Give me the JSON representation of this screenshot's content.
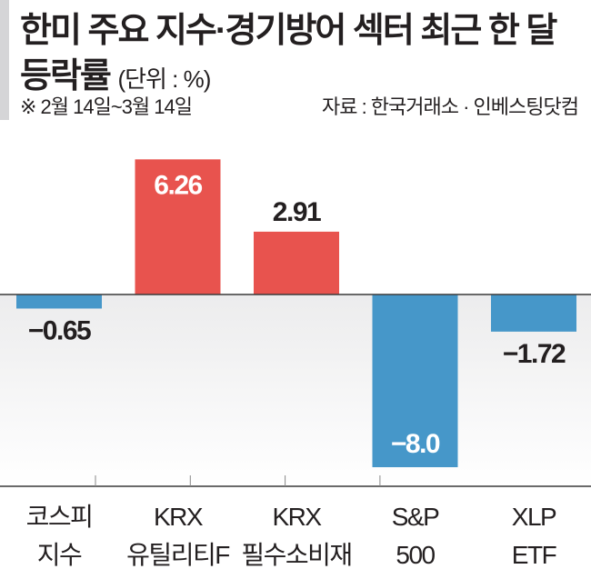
{
  "header": {
    "title_line1": "한미 주요 지수·경기방어 섹터 최근 한 달",
    "title_line2": "등락률",
    "unit": "(단위 : %)",
    "period": "※ 2월 14일~3월 14일",
    "source": "자료 : 한국거래소 · 인베스팅닷컴"
  },
  "chart_data": {
    "type": "bar",
    "title": "한미 주요 지수·경기방어 섹터 최근 한 달 등락률",
    "ylabel": "%",
    "xlabel": "",
    "ylim": [
      -8.9,
      6.8
    ],
    "grid": false,
    "categories": [
      [
        "코스피",
        "지수"
      ],
      [
        "KRX",
        "유틸리티F"
      ],
      [
        "KRX",
        "필수소비재"
      ],
      [
        "S&P",
        "500"
      ],
      [
        "XLP",
        "ETF"
      ]
    ],
    "values": [
      -0.65,
      6.26,
      2.91,
      -8.0,
      -1.72
    ],
    "value_labels": [
      "−0.65",
      "6.26",
      "2.91",
      "−8.0",
      "−1.72"
    ],
    "label_position": [
      "outside",
      "inside",
      "outside",
      "inside",
      "outside"
    ],
    "colors": {
      "positive": "#e8534e",
      "negative": "#4697c9",
      "text": "#231f20"
    }
  }
}
